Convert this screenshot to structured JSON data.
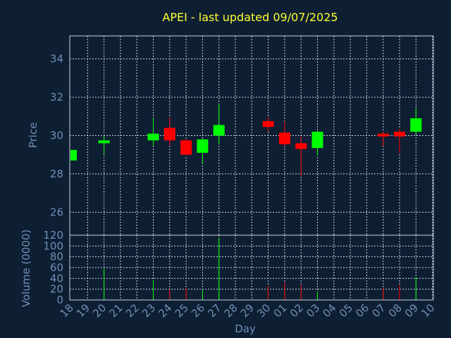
{
  "chart_data": {
    "type": "candlestick",
    "title": "APEI - last updated 09/07/2025",
    "xlabel": "Day",
    "price_ylabel": "Price",
    "volume_ylabel": "Volume (0000)",
    "x_ticks": [
      "18",
      "19",
      "20",
      "21",
      "22",
      "23",
      "24",
      "25",
      "26",
      "27",
      "28",
      "29",
      "30",
      "01",
      "02",
      "03",
      "04",
      "05",
      "06",
      "07",
      "08",
      "09",
      "10"
    ],
    "price_ylim": [
      24.8,
      35.2
    ],
    "price_yticks": [
      26,
      28,
      30,
      32,
      34
    ],
    "volume_ylim": [
      0,
      120
    ],
    "volume_yticks": [
      0,
      20,
      40,
      60,
      80,
      100,
      120
    ],
    "grid": true,
    "colors": {
      "up": "#00ff00",
      "down": "#ff0000",
      "title": "#ffff33",
      "axis_text": "#6f8fb5",
      "background": "#0e1e33"
    },
    "candles": [
      {
        "day": "18",
        "open": 28.7,
        "high": 29.25,
        "low": 28.7,
        "close": 29.25,
        "volume": 0
      },
      {
        "day": "20",
        "open": 29.6,
        "high": 30.0,
        "low": 29.05,
        "close": 29.75,
        "volume": 58
      },
      {
        "day": "23",
        "open": 29.75,
        "high": 30.95,
        "low": 29.45,
        "close": 30.1,
        "volume": 36
      },
      {
        "day": "24",
        "open": 30.4,
        "high": 30.95,
        "low": 29.5,
        "close": 29.75,
        "volume": 20
      },
      {
        "day": "25",
        "open": 29.75,
        "high": 29.85,
        "low": 28.95,
        "close": 29.0,
        "volume": 22
      },
      {
        "day": "26",
        "open": 29.1,
        "high": 29.85,
        "low": 28.55,
        "close": 29.8,
        "volume": 18
      },
      {
        "day": "27",
        "open": 30.0,
        "high": 31.65,
        "low": 29.55,
        "close": 30.55,
        "volume": 115
      },
      {
        "day": "30",
        "open": 30.75,
        "high": 30.95,
        "low": 30.2,
        "close": 30.45,
        "volume": 26
      },
      {
        "day": "01",
        "open": 30.15,
        "high": 30.75,
        "low": 29.45,
        "close": 29.55,
        "volume": 33
      },
      {
        "day": "02",
        "open": 29.6,
        "high": 29.95,
        "low": 27.9,
        "close": 29.3,
        "volume": 28
      },
      {
        "day": "03",
        "open": 29.35,
        "high": 30.25,
        "low": 28.95,
        "close": 30.2,
        "volume": 16
      },
      {
        "day": "07",
        "open": 30.1,
        "high": 30.2,
        "low": 29.45,
        "close": 29.95,
        "volume": 22
      },
      {
        "day": "08",
        "open": 30.2,
        "high": 30.35,
        "low": 29.1,
        "close": 29.95,
        "volume": 28
      },
      {
        "day": "09",
        "open": 30.2,
        "high": 31.45,
        "low": 30.05,
        "close": 30.9,
        "volume": 42
      }
    ]
  }
}
